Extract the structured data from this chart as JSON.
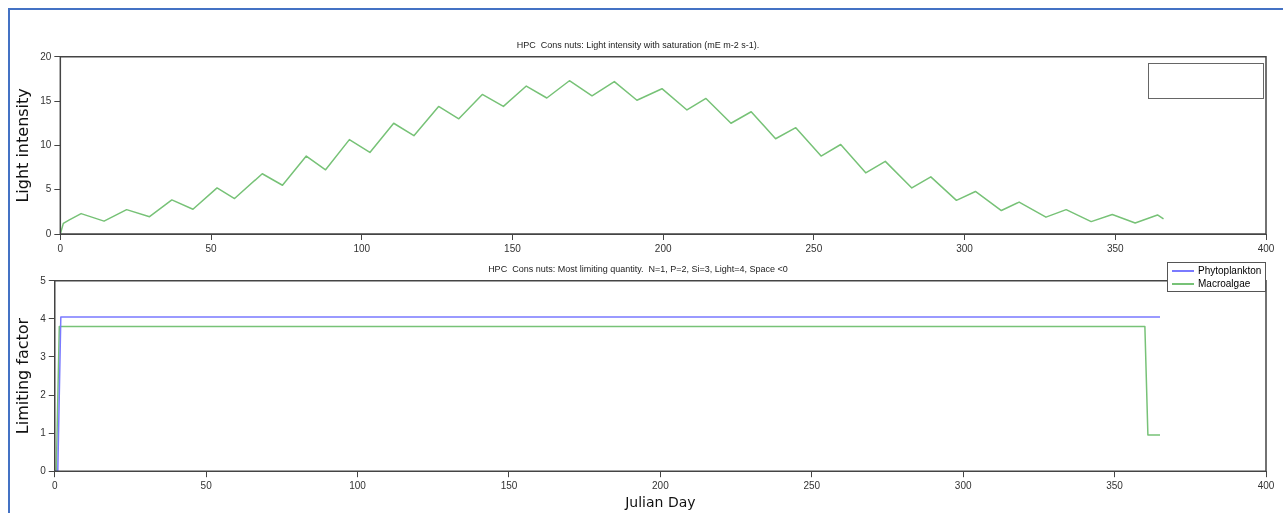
{
  "chart_data": [
    {
      "type": "line",
      "title": "HPC  Cons nuts: Light intensity with saturation (mE m-2 s-1).",
      "ylabel": "Light intensity",
      "color": "#77c277",
      "x": [
        0,
        1,
        3,
        6.9,
        14.5,
        22,
        29.6,
        37,
        44,
        52,
        57.8,
        67,
        73.7,
        81.6,
        88,
        95.9,
        102.7,
        110.6,
        117.3,
        125.5,
        132.2,
        140,
        147,
        154.6,
        161.4,
        168.9,
        176.4,
        183.8,
        191.3,
        199.6,
        207.9,
        214.2,
        222.5,
        229.2,
        237.3,
        244,
        252.4,
        258.9,
        267.2,
        273.7,
        282.5,
        288.8,
        297.3,
        303.6,
        312.2,
        318.1,
        327,
        333.7,
        342,
        349,
        356.6,
        364,
        366
      ],
      "values": [
        0,
        1.2,
        1.6,
        2.3,
        1.45,
        2.75,
        1.95,
        3.85,
        2.8,
        5.2,
        4.0,
        6.8,
        5.5,
        8.8,
        7.25,
        10.65,
        9.2,
        12.5,
        11.1,
        14.4,
        13.0,
        15.75,
        14.4,
        16.7,
        15.35,
        17.3,
        15.6,
        17.2,
        15.1,
        16.4,
        14.0,
        15.3,
        12.5,
        13.8,
        10.75,
        12.0,
        8.8,
        10.1,
        6.9,
        8.2,
        5.2,
        6.45,
        3.8,
        4.8,
        2.65,
        3.6,
        1.9,
        2.75,
        1.4,
        2.2,
        1.25,
        2.15,
        1.7
      ],
      "xlim": [
        0,
        400
      ],
      "xticks": [
        0,
        50,
        100,
        150,
        200,
        250,
        300,
        350,
        400
      ],
      "ylim": [
        0,
        20
      ],
      "yticks": [
        0,
        5,
        10,
        15,
        20
      ]
    },
    {
      "type": "line",
      "title": "HPC  Cons nuts: Most limiting quantity.  N=1, P=2, Si=3, Light=4, Space <0",
      "xlabel": "Julian Day",
      "ylabel": "Limiting factor",
      "legend": "top right",
      "series": [
        {
          "name": "Phytoplankton",
          "color": "#7a7aff",
          "x": [
            0,
            1,
            2,
            365
          ],
          "values": [
            0,
            0,
            4.05,
            4.05
          ]
        },
        {
          "name": "Macroalgae",
          "color": "#77c277",
          "x": [
            0,
            0.5,
            1.5,
            360,
            361,
            365
          ],
          "values": [
            0,
            0,
            3.8,
            3.8,
            0.95,
            0.95
          ]
        }
      ],
      "xlim": [
        0,
        400
      ],
      "xticks": [
        0,
        50,
        100,
        150,
        200,
        250,
        300,
        350,
        400
      ],
      "ylim": [
        0,
        5
      ],
      "yticks": [
        0,
        1,
        2,
        3,
        4,
        5
      ]
    }
  ]
}
